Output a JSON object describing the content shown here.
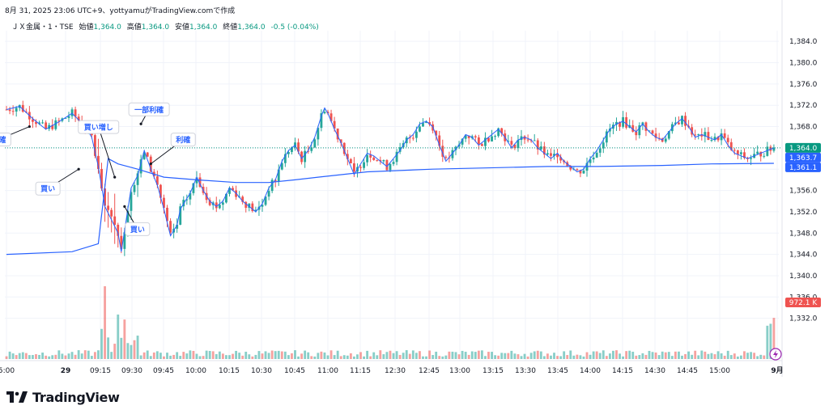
{
  "header": {
    "snapshot_line": "8月 31, 2025 23:06 UTC+9、yottyamuがTradingView.comで作成"
  },
  "legend": {
    "symbol": "ＪＸ金属・1・TSE",
    "open_label": "始値",
    "open": "1,364.0",
    "high_label": "高値",
    "high": "1,364.0",
    "low_label": "安値",
    "low": "1,364.0",
    "close_label": "終値",
    "close": "1,364.0",
    "change": "-0.5 (-0.04%)"
  },
  "brand": "TradingView",
  "colors": {
    "up": "#26a69a",
    "down": "#ef5350",
    "vwap": "#2962ff",
    "ma": "#2962ff",
    "last_price": "#089981",
    "vwap_label": "#2962ff",
    "grid": "#f0f3fa"
  },
  "chart_data": {
    "type": "candlestick",
    "y_ticks": [
      "1,384.0",
      "1,380.0",
      "1,376.0",
      "1,372.0",
      "1,368.0",
      "1,364.0",
      "1,360.0",
      "1,356.0",
      "1,352.0",
      "1,348.0",
      "1,344.0",
      "1,340.0",
      "1,336.0",
      "1,332.0"
    ],
    "x_ticks": [
      "5:00",
      "29",
      "09:15",
      "09:30",
      "09:45",
      "10:00",
      "10:15",
      "10:30",
      "10:45",
      "11:00",
      "11:15",
      "12:30",
      "12:45",
      "13:00",
      "13:15",
      "13:30",
      "13:45",
      "14:00",
      "14:15",
      "14:30",
      "14:45",
      "15:00",
      "9月"
    ],
    "ylim": [
      1328,
      1386
    ],
    "price_labels": [
      {
        "text": "1,364.0",
        "value": 1364.0,
        "color": "#089981"
      },
      {
        "text": "1,363.7",
        "value": 1363.7,
        "color": "#2962ff"
      },
      {
        "text": "1,361.1",
        "value": 1361.1,
        "color": "#2962ff"
      }
    ],
    "volume_label": {
      "text": "972.1 K"
    },
    "price_path": [
      [
        1371.2,
        0
      ],
      [
        1371.8,
        4
      ],
      [
        1369.5,
        8
      ],
      [
        1367.5,
        12
      ],
      [
        1368.9,
        16
      ],
      [
        1370.5,
        20
      ],
      [
        1368.0,
        24
      ],
      [
        1366.0,
        26
      ],
      [
        1360.5,
        28
      ],
      [
        1353.0,
        30
      ],
      [
        1350.5,
        32
      ],
      [
        1348.0,
        34
      ],
      [
        1344.5,
        35
      ],
      [
        1348.5,
        36
      ],
      [
        1356.5,
        38
      ],
      [
        1358.8,
        40
      ],
      [
        1363.5,
        42
      ],
      [
        1360.0,
        44
      ],
      [
        1357.0,
        46
      ],
      [
        1352.5,
        48
      ],
      [
        1347.5,
        50
      ],
      [
        1349.5,
        52
      ],
      [
        1352.5,
        53
      ],
      [
        1355.5,
        56
      ],
      [
        1358.5,
        58
      ],
      [
        1356.0,
        60
      ],
      [
        1354.0,
        62
      ],
      [
        1353.0,
        64
      ],
      [
        1354.0,
        66
      ],
      [
        1356.5,
        68
      ],
      [
        1355.5,
        70
      ],
      [
        1354.0,
        72
      ],
      [
        1353.0,
        74
      ],
      [
        1352.0,
        76
      ],
      [
        1353.5,
        78
      ],
      [
        1356.5,
        80
      ],
      [
        1358.0,
        82
      ],
      [
        1361.5,
        84
      ],
      [
        1363.5,
        86
      ],
      [
        1364.5,
        88
      ],
      [
        1362.0,
        90
      ],
      [
        1363.5,
        92
      ],
      [
        1366.0,
        94
      ],
      [
        1370.0,
        96
      ],
      [
        1371.5,
        97
      ],
      [
        1370.5,
        98
      ],
      [
        1367.5,
        100
      ],
      [
        1365.0,
        102
      ],
      [
        1362.0,
        104
      ],
      [
        1359.0,
        106
      ],
      [
        1361.0,
        108
      ],
      [
        1363.0,
        110
      ],
      [
        1362.5,
        112
      ],
      [
        1361.5,
        114
      ],
      [
        1360.5,
        116
      ],
      [
        1362.0,
        118
      ],
      [
        1363.5,
        120
      ],
      [
        1365.5,
        122
      ],
      [
        1366.5,
        124
      ],
      [
        1368.5,
        126
      ],
      [
        1369.0,
        128
      ],
      [
        1368.0,
        130
      ],
      [
        1364.5,
        132
      ],
      [
        1361.5,
        134
      ],
      [
        1363.0,
        136
      ],
      [
        1364.5,
        138
      ],
      [
        1366.5,
        140
      ],
      [
        1366.0,
        142
      ],
      [
        1364.5,
        144
      ],
      [
        1365.5,
        146
      ],
      [
        1366.5,
        148
      ],
      [
        1367.5,
        150
      ],
      [
        1366.0,
        152
      ],
      [
        1364.0,
        154
      ],
      [
        1365.5,
        156
      ],
      [
        1366.0,
        158
      ],
      [
        1365.5,
        160
      ],
      [
        1364.0,
        162
      ],
      [
        1363.0,
        164
      ],
      [
        1362.0,
        166
      ],
      [
        1363.0,
        168
      ],
      [
        1361.5,
        170
      ],
      [
        1360.5,
        172
      ],
      [
        1359.5,
        174
      ],
      [
        1360.0,
        176
      ],
      [
        1362.0,
        178
      ],
      [
        1363.5,
        180
      ],
      [
        1365.5,
        182
      ],
      [
        1367.5,
        184
      ],
      [
        1368.5,
        186
      ],
      [
        1369.0,
        188
      ],
      [
        1368.0,
        190
      ],
      [
        1367.0,
        192
      ],
      [
        1368.5,
        194
      ],
      [
        1367.0,
        196
      ],
      [
        1366.0,
        198
      ],
      [
        1365.5,
        200
      ],
      [
        1367.0,
        202
      ],
      [
        1368.5,
        204
      ],
      [
        1369.5,
        206
      ],
      [
        1368.0,
        208
      ],
      [
        1366.0,
        210
      ],
      [
        1366.5,
        212
      ],
      [
        1366.0,
        214
      ],
      [
        1365.5,
        216
      ],
      [
        1366.5,
        218
      ],
      [
        1364.5,
        220
      ],
      [
        1363.0,
        222
      ],
      [
        1362.5,
        224
      ],
      [
        1362.0,
        226
      ],
      [
        1362.5,
        228
      ],
      [
        1363.0,
        230
      ],
      [
        1363.5,
        232
      ],
      [
        1364.0,
        234
      ]
    ],
    "vwap_path": [
      [
        1344.0,
        0
      ],
      [
        1344.5,
        20
      ],
      [
        1346.0,
        28
      ],
      [
        1362.0,
        31
      ],
      [
        1361.0,
        34
      ],
      [
        1360.0,
        40
      ],
      [
        1358.5,
        48
      ],
      [
        1358.0,
        58
      ],
      [
        1357.5,
        70
      ],
      [
        1357.5,
        80
      ],
      [
        1358.0,
        88
      ],
      [
        1358.5,
        95
      ],
      [
        1359.5,
        110
      ],
      [
        1360.0,
        130
      ],
      [
        1360.3,
        150
      ],
      [
        1360.5,
        165
      ],
      [
        1360.5,
        180
      ],
      [
        1360.7,
        200
      ],
      [
        1361.0,
        215
      ],
      [
        1361.1,
        234
      ]
    ],
    "annotations": [
      {
        "text": "利確",
        "bar": 7,
        "price": 1368.0,
        "dx": -38,
        "dy": 16
      },
      {
        "text": "買い",
        "bar": 22,
        "price": 1360.0,
        "dx": -38,
        "dy": 24
      },
      {
        "text": "買い増し",
        "bar": 33,
        "price": 1358.5,
        "dx": -20,
        "dy": -62
      },
      {
        "text": "買い",
        "bar": 36,
        "price": 1353.0,
        "dx": 16,
        "dy": 28
      },
      {
        "text": "一部利確",
        "bar": 41,
        "price": 1368.5,
        "dx": 10,
        "dy": -18
      },
      {
        "text": "利確",
        "bar": 44,
        "price": 1361.0,
        "dx": 40,
        "dy": -30
      }
    ]
  }
}
